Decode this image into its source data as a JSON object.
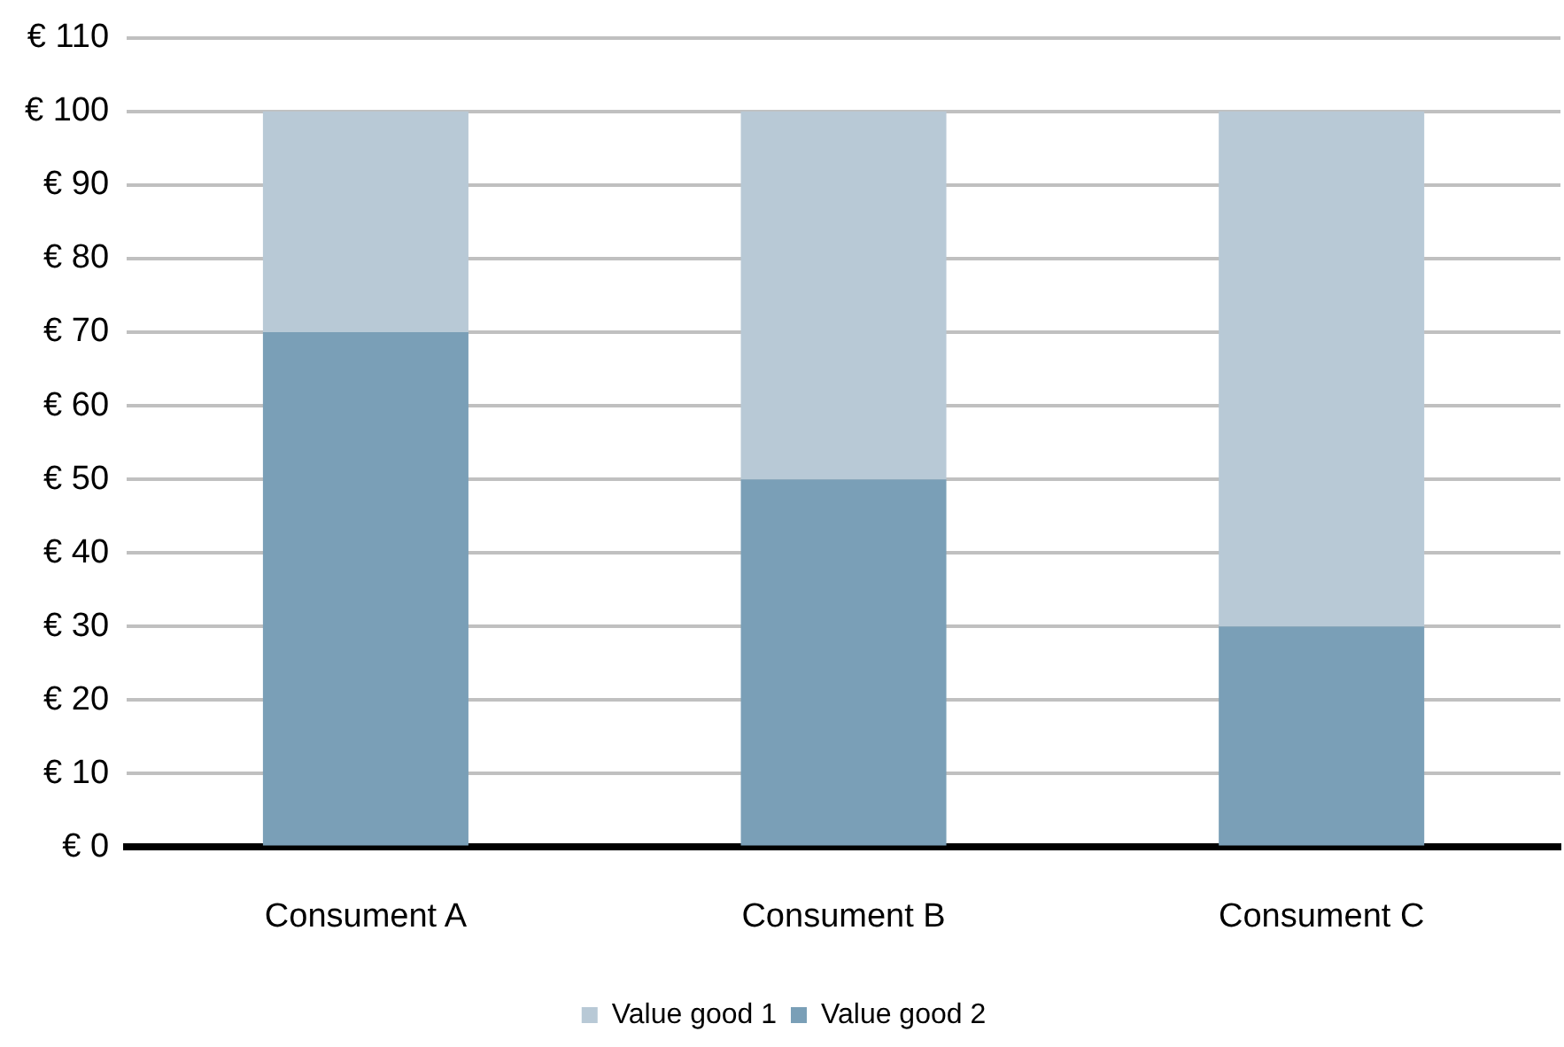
{
  "chart_data": {
    "type": "bar",
    "stacked": true,
    "categories": [
      "Consument A",
      "Consument B",
      "Consument C"
    ],
    "series": [
      {
        "name": "Value good 2",
        "color": "#7a9fb7",
        "values": [
          70,
          50,
          30
        ]
      },
      {
        "name": "Value good 1",
        "color": "#b8c9d6",
        "values": [
          30,
          50,
          70
        ]
      }
    ],
    "ylim": [
      0,
      110
    ],
    "yticks": [
      {
        "value": 0,
        "label": "€ 0"
      },
      {
        "value": 10,
        "label": "€ 10"
      },
      {
        "value": 20,
        "label": "€ 20"
      },
      {
        "value": 30,
        "label": "€ 30"
      },
      {
        "value": 40,
        "label": "€ 40"
      },
      {
        "value": 50,
        "label": "€ 50"
      },
      {
        "value": 60,
        "label": "€ 60"
      },
      {
        "value": 70,
        "label": "€ 70"
      },
      {
        "value": 80,
        "label": "€ 80"
      },
      {
        "value": 90,
        "label": "€ 90"
      },
      {
        "value": 100,
        "label": "€ 100"
      },
      {
        "value": 110,
        "label": "€ 110"
      }
    ],
    "grid": "y",
    "legend": "bottom"
  }
}
